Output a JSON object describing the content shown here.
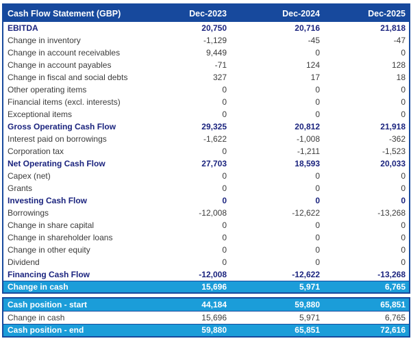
{
  "colors": {
    "header_bg": "#17499d",
    "highlight_row_bg": "#1b9dd9",
    "subtotal_text": "#1a237e",
    "body_text": "#3a3a3a",
    "table_border": "#17499d"
  },
  "chart_data": {
    "type": "table",
    "title": "Cash Flow Statement (GBP)",
    "columns": [
      "Dec-2023",
      "Dec-2024",
      "Dec-2025"
    ],
    "rows": [
      {
        "label": "EBITDA",
        "style": "bold",
        "values": [
          "20,750",
          "20,716",
          "21,818"
        ]
      },
      {
        "label": "Change in inventory",
        "style": "normal",
        "values": [
          "-1,129",
          "-45",
          "-47"
        ]
      },
      {
        "label": "Change in account receivables",
        "style": "normal",
        "values": [
          "9,449",
          "0",
          "0"
        ]
      },
      {
        "label": "Change in account payables",
        "style": "normal",
        "values": [
          "-71",
          "124",
          "128"
        ]
      },
      {
        "label": "Change in fiscal and social debts",
        "style": "normal",
        "values": [
          "327",
          "17",
          "18"
        ]
      },
      {
        "label": "Other operating items",
        "style": "normal",
        "values": [
          "0",
          "0",
          "0"
        ]
      },
      {
        "label": "Financial items (excl. interests)",
        "style": "normal",
        "values": [
          "0",
          "0",
          "0"
        ]
      },
      {
        "label": "Exceptional items",
        "style": "normal",
        "values": [
          "0",
          "0",
          "0"
        ]
      },
      {
        "label": "Gross Operating Cash Flow",
        "style": "bold",
        "values": [
          "29,325",
          "20,812",
          "21,918"
        ]
      },
      {
        "label": "Interest paid on borrowings",
        "style": "normal",
        "values": [
          "-1,622",
          "-1,008",
          "-362"
        ]
      },
      {
        "label": "Corporation tax",
        "style": "normal",
        "values": [
          "0",
          "-1,211",
          "-1,523"
        ]
      },
      {
        "label": "Net Operating Cash Flow",
        "style": "bold",
        "values": [
          "27,703",
          "18,593",
          "20,033"
        ]
      },
      {
        "label": "Capex (net)",
        "style": "normal",
        "values": [
          "0",
          "0",
          "0"
        ]
      },
      {
        "label": "Grants",
        "style": "normal",
        "values": [
          "0",
          "0",
          "0"
        ]
      },
      {
        "label": "Investing Cash Flow",
        "style": "bold",
        "values": [
          "0",
          "0",
          "0"
        ]
      },
      {
        "label": "Borrowings",
        "style": "normal",
        "values": [
          "-12,008",
          "-12,622",
          "-13,268"
        ]
      },
      {
        "label": "Change in share capital",
        "style": "normal",
        "values": [
          "0",
          "0",
          "0"
        ]
      },
      {
        "label": "Change in shareholder loans",
        "style": "normal",
        "values": [
          "0",
          "0",
          "0"
        ]
      },
      {
        "label": "Change in other equity",
        "style": "normal",
        "values": [
          "0",
          "0",
          "0"
        ]
      },
      {
        "label": "Dividend",
        "style": "normal",
        "values": [
          "0",
          "0",
          "0"
        ]
      },
      {
        "label": "Financing Cash Flow",
        "style": "bold",
        "values": [
          "-12,008",
          "-12,622",
          "-13,268"
        ]
      },
      {
        "label": "Change in cash",
        "style": "highlight",
        "values": [
          "15,696",
          "5,971",
          "6,765"
        ]
      }
    ],
    "cash_position_rows": [
      {
        "label": "Cash position - start",
        "style": "highlight",
        "values": [
          "44,184",
          "59,880",
          "65,851"
        ]
      },
      {
        "label": "Change in cash",
        "style": "normal",
        "values": [
          "15,696",
          "5,971",
          "6,765"
        ]
      },
      {
        "label": "Cash position - end",
        "style": "highlight",
        "values": [
          "59,880",
          "65,851",
          "72,616"
        ]
      }
    ]
  }
}
